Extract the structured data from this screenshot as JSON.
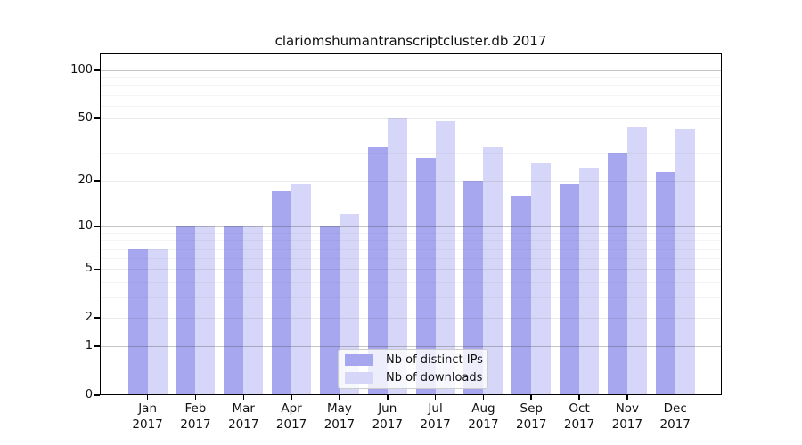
{
  "chart_data": {
    "type": "bar",
    "title": "clariomshumantranscriptcluster.db 2017",
    "categories": [
      "Jan",
      "Feb",
      "Mar",
      "Apr",
      "May",
      "Jun",
      "Jul",
      "Aug",
      "Sep",
      "Oct",
      "Nov",
      "Dec"
    ],
    "year_label": "2017",
    "series": [
      {
        "name": "Nb of distinct IPs",
        "color": "#a7a7f0",
        "values": [
          7,
          10,
          10,
          17,
          10,
          33,
          28,
          20,
          16,
          19,
          30,
          23
        ]
      },
      {
        "name": "Nb of downloads",
        "color": "#d6d6f8",
        "values": [
          7,
          10,
          10,
          19,
          12,
          50,
          48,
          33,
          26,
          24,
          44,
          43
        ]
      }
    ],
    "xlabel": "",
    "ylabel": "",
    "yscale": "log1p",
    "yticks": [
      0,
      1,
      2,
      5,
      10,
      20,
      50,
      100
    ],
    "yticks_minor": [
      3,
      4,
      6,
      7,
      8,
      9,
      30,
      40,
      60,
      70,
      80,
      90
    ],
    "ylim": [
      0,
      127
    ],
    "grid": true,
    "legend_position": "lower center"
  }
}
